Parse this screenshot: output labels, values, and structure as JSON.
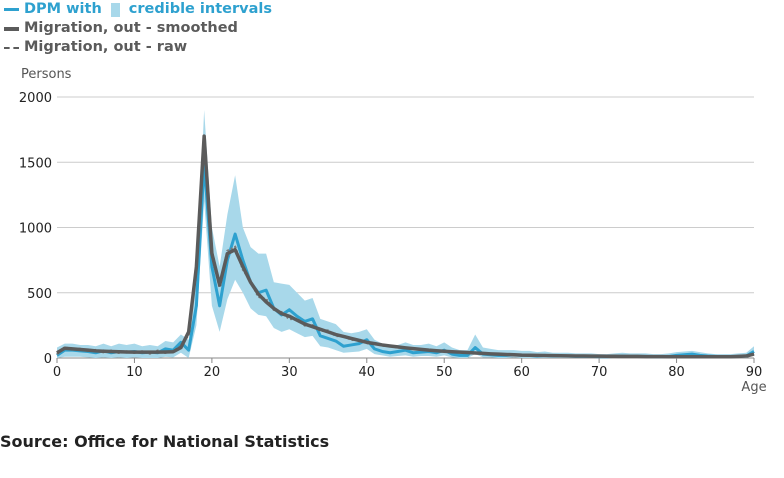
{
  "chart_data": {
    "type": "line",
    "ylabel": "Persons",
    "xlabel": "Age",
    "xlim": [
      0,
      90
    ],
    "ylim": [
      0,
      2000
    ],
    "xticks": [
      0,
      10,
      20,
      30,
      40,
      50,
      60,
      70,
      80,
      90
    ],
    "yticks": [
      0,
      500,
      1000,
      1500,
      2000
    ],
    "grid": "horizontal",
    "legend_position": "top-left",
    "legend": {
      "dpm_label": "DPM with",
      "ci_label": "credible intervals",
      "smoothed_label": "Migration, out - smoothed",
      "raw_label": "Migration, out - raw"
    },
    "colors": {
      "dpm": "#2ea1cf",
      "band": "#a8d8ea",
      "smoothed": "#5b5b5b",
      "raw": "#7a7a7a",
      "grid": "#cccccc"
    },
    "x": [
      0,
      1,
      2,
      3,
      4,
      5,
      6,
      7,
      8,
      9,
      10,
      11,
      12,
      13,
      14,
      15,
      16,
      17,
      18,
      19,
      20,
      21,
      22,
      23,
      24,
      25,
      26,
      27,
      28,
      29,
      30,
      31,
      32,
      33,
      34,
      35,
      36,
      37,
      38,
      39,
      40,
      41,
      42,
      43,
      44,
      45,
      46,
      47,
      48,
      49,
      50,
      51,
      52,
      53,
      54,
      55,
      56,
      57,
      58,
      59,
      60,
      61,
      62,
      63,
      64,
      65,
      66,
      67,
      68,
      69,
      70,
      71,
      72,
      73,
      74,
      75,
      76,
      77,
      78,
      79,
      80,
      81,
      82,
      83,
      84,
      85,
      86,
      87,
      88,
      89,
      90
    ],
    "series": [
      {
        "name": "DPM",
        "values": [
          20,
          60,
          60,
          55,
          50,
          40,
          55,
          40,
          50,
          45,
          50,
          40,
          45,
          40,
          70,
          60,
          120,
          60,
          400,
          1500,
          700,
          400,
          750,
          950,
          750,
          580,
          500,
          520,
          380,
          330,
          370,
          320,
          280,
          300,
          170,
          150,
          130,
          90,
          100,
          110,
          140,
          70,
          50,
          40,
          50,
          60,
          40,
          45,
          50,
          40,
          60,
          30,
          20,
          20,
          80,
          30,
          25,
          20,
          20,
          25,
          20,
          20,
          15,
          20,
          15,
          15,
          15,
          12,
          12,
          12,
          10,
          10,
          12,
          15,
          12,
          12,
          12,
          10,
          10,
          12,
          20,
          25,
          30,
          20,
          15,
          12,
          10,
          10,
          12,
          15,
          50
        ]
      },
      {
        "name": "Migration, out - smoothed",
        "values": [
          40,
          75,
          70,
          65,
          60,
          55,
          52,
          50,
          48,
          46,
          45,
          45,
          45,
          45,
          46,
          48,
          80,
          200,
          700,
          1700,
          800,
          560,
          800,
          830,
          700,
          580,
          490,
          430,
          380,
          340,
          320,
          290,
          260,
          240,
          220,
          200,
          180,
          165,
          150,
          135,
          120,
          110,
          100,
          92,
          85,
          78,
          72,
          66,
          60,
          56,
          52,
          48,
          45,
          42,
          38,
          35,
          32,
          30,
          27,
          25,
          22,
          21,
          20,
          19,
          18,
          17,
          16,
          15,
          15,
          14,
          14,
          13,
          13,
          12,
          12,
          12,
          11,
          11,
          11,
          10,
          10,
          10,
          10,
          10,
          10,
          10,
          10,
          10,
          12,
          15,
          30
        ]
      },
      {
        "name": "Migration, out - raw",
        "values": [
          30,
          80,
          65,
          70,
          55,
          60,
          45,
          55,
          40,
          50,
          40,
          50,
          35,
          55,
          40,
          50,
          90,
          180,
          720,
          1680,
          820,
          540,
          820,
          850,
          680,
          590,
          470,
          450,
          370,
          350,
          300,
          300,
          250,
          250,
          210,
          210,
          170,
          170,
          140,
          140,
          115,
          115,
          95,
          95,
          80,
          80,
          70,
          65,
          62,
          55,
          55,
          45,
          47,
          40,
          40,
          33,
          33,
          28,
          28,
          23,
          23,
          20,
          21,
          18,
          19,
          16,
          17,
          14,
          15,
          13,
          15,
          12,
          14,
          11,
          13,
          11,
          12,
          10,
          12,
          9,
          11,
          9,
          11,
          9,
          11,
          9,
          11,
          9,
          13,
          14,
          32
        ]
      }
    ],
    "band": {
      "lower": [
        0,
        10,
        10,
        10,
        5,
        0,
        5,
        0,
        5,
        0,
        5,
        0,
        0,
        0,
        10,
        5,
        40,
        0,
        250,
        1200,
        400,
        200,
        450,
        600,
        500,
        380,
        330,
        320,
        230,
        200,
        220,
        190,
        160,
        170,
        90,
        80,
        60,
        40,
        45,
        50,
        70,
        30,
        20,
        10,
        15,
        20,
        10,
        15,
        15,
        10,
        20,
        5,
        0,
        0,
        30,
        5,
        5,
        0,
        0,
        5,
        0,
        0,
        0,
        0,
        0,
        0,
        0,
        0,
        0,
        0,
        0,
        0,
        0,
        0,
        0,
        0,
        0,
        0,
        0,
        0,
        5,
        5,
        10,
        5,
        0,
        0,
        0,
        0,
        0,
        0,
        20
      ],
      "upper": [
        80,
        110,
        110,
        100,
        100,
        90,
        110,
        90,
        110,
        100,
        110,
        90,
        100,
        90,
        130,
        120,
        180,
        140,
        600,
        1900,
        1000,
        700,
        1100,
        1400,
        1000,
        850,
        800,
        800,
        580,
        570,
        560,
        500,
        440,
        460,
        300,
        280,
        260,
        200,
        190,
        200,
        220,
        140,
        110,
        100,
        100,
        120,
        100,
        100,
        110,
        90,
        120,
        80,
        60,
        60,
        180,
        80,
        70,
        60,
        60,
        60,
        55,
        55,
        45,
        50,
        40,
        40,
        40,
        35,
        35,
        35,
        30,
        30,
        35,
        40,
        35,
        35,
        35,
        30,
        30,
        35,
        45,
        50,
        55,
        45,
        35,
        30,
        30,
        30,
        35,
        40,
        90
      ]
    }
  },
  "source": "Source: Office for National Statistics"
}
